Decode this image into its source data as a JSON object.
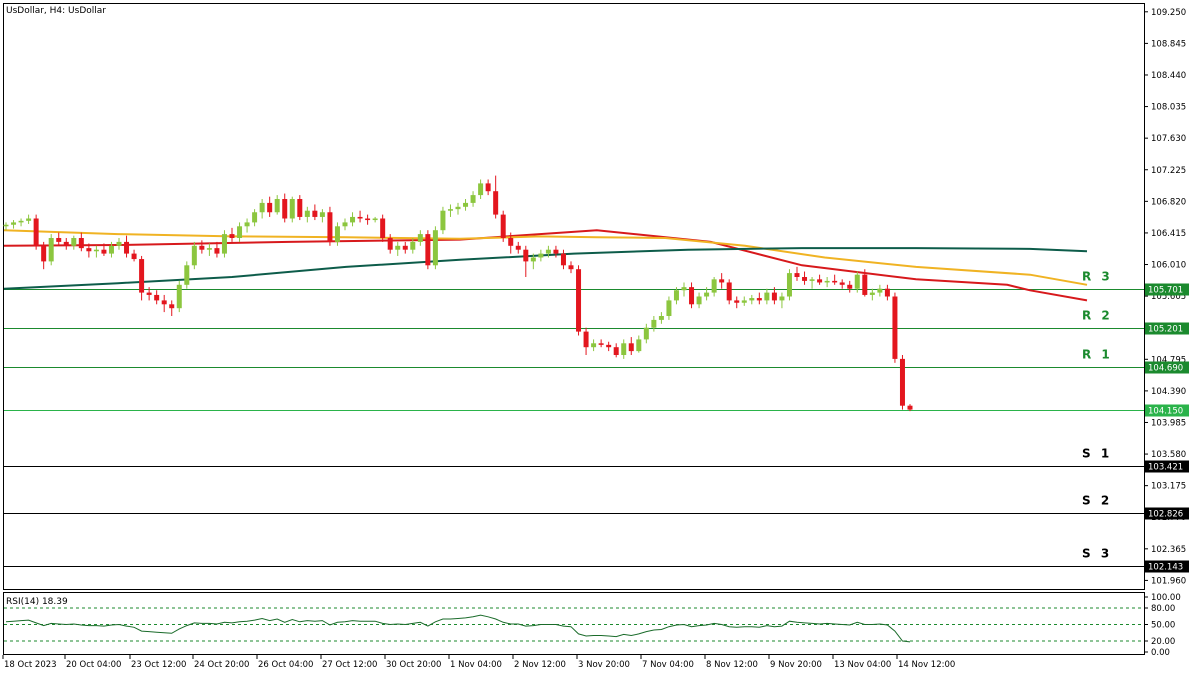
{
  "chart_data": {
    "type": "candlestick",
    "title": "UsDollar, H4:  UsDollar",
    "ylim": [
      101.85,
      109.35
    ],
    "y_ticks": [
      "109.250",
      "108.845",
      "108.440",
      "108.035",
      "107.630",
      "107.225",
      "106.820",
      "106.415",
      "106.010",
      "105.605",
      "105.200",
      "104.795",
      "104.390",
      "103.985",
      "103.580",
      "103.175",
      "102.770",
      "102.365",
      "101.960"
    ],
    "x_ticks": [
      "18 Oct 2023",
      "20 Oct 04:00",
      "23 Oct 12:00",
      "24 Oct 20:00",
      "26 Oct 04:00",
      "27 Oct 12:00",
      "30 Oct 20:00",
      "1 Nov 04:00",
      "2 Nov 12:00",
      "3 Nov 20:00",
      "7 Nov 04:00",
      "8 Nov 12:00",
      "9 Nov 20:00",
      "13 Nov 04:00",
      "14 Nov 12:00"
    ],
    "colors": {
      "up": "#8cc63f",
      "down": "#e3161e",
      "ma_red": "#d7191c",
      "ma_orange": "#f0b323",
      "ma_dark": "#0d5c4a",
      "level_green": "#1b8a2e",
      "level_black": "#000000",
      "rsi": "#1a6b2a",
      "current_price": "#2ab34a"
    },
    "levels": [
      {
        "name": "R 3",
        "value": 105.701,
        "label": "105.701",
        "color": "#1b8a2e"
      },
      {
        "name": "R 2",
        "value": 105.201,
        "label": "105.201",
        "color": "#1b8a2e"
      },
      {
        "name": "R 1",
        "value": 104.69,
        "label": "104.690",
        "color": "#1b8a2e"
      },
      {
        "name": "",
        "value": 104.15,
        "label": "104.150",
        "color": "#2ab34a"
      },
      {
        "name": "S 1",
        "value": 103.421,
        "label": "103.421",
        "color": "#000000"
      },
      {
        "name": "S 2",
        "value": 102.826,
        "label": "102.826",
        "color": "#000000"
      },
      {
        "name": "S 3",
        "value": 102.143,
        "label": "102.143",
        "color": "#000000"
      }
    ],
    "candles": [
      [
        106.5,
        106.55,
        106.45,
        106.52
      ],
      [
        106.52,
        106.58,
        106.47,
        106.55
      ],
      [
        106.55,
        106.6,
        106.5,
        106.57
      ],
      [
        106.57,
        106.65,
        106.53,
        106.6
      ],
      [
        106.6,
        106.65,
        106.2,
        106.25
      ],
      [
        106.25,
        106.3,
        105.95,
        106.05
      ],
      [
        106.05,
        106.4,
        106.0,
        106.35
      ],
      [
        106.35,
        106.42,
        106.25,
        106.3
      ],
      [
        106.3,
        106.35,
        106.2,
        106.25
      ],
      [
        106.25,
        106.38,
        106.2,
        106.35
      ],
      [
        106.35,
        106.42,
        106.18,
        106.22
      ],
      [
        106.22,
        106.28,
        106.1,
        106.18
      ],
      [
        106.18,
        106.25,
        106.1,
        106.2
      ],
      [
        106.2,
        106.28,
        106.12,
        106.15
      ],
      [
        106.15,
        106.3,
        106.1,
        106.25
      ],
      [
        106.25,
        106.35,
        106.2,
        106.3
      ],
      [
        106.3,
        106.38,
        106.1,
        106.15
      ],
      [
        106.15,
        106.2,
        106.05,
        106.08
      ],
      [
        106.08,
        106.12,
        105.55,
        105.65
      ],
      [
        105.65,
        105.72,
        105.55,
        105.62
      ],
      [
        105.62,
        105.68,
        105.5,
        105.55
      ],
      [
        105.55,
        105.62,
        105.4,
        105.5
      ],
      [
        105.5,
        105.55,
        105.35,
        105.45
      ],
      [
        105.45,
        105.8,
        105.4,
        105.75
      ],
      [
        105.75,
        106.05,
        105.7,
        106.0
      ],
      [
        106.0,
        106.3,
        105.95,
        106.25
      ],
      [
        106.25,
        106.32,
        106.15,
        106.2
      ],
      [
        106.2,
        106.28,
        106.12,
        106.22
      ],
      [
        106.22,
        106.3,
        106.1,
        106.15
      ],
      [
        106.15,
        106.45,
        106.1,
        106.4
      ],
      [
        106.4,
        106.48,
        106.3,
        106.35
      ],
      [
        106.35,
        106.55,
        106.3,
        106.5
      ],
      [
        106.5,
        106.6,
        106.42,
        106.55
      ],
      [
        106.55,
        106.72,
        106.5,
        106.68
      ],
      [
        106.68,
        106.85,
        106.6,
        106.8
      ],
      [
        106.8,
        106.88,
        106.62,
        106.68
      ],
      [
        106.68,
        106.9,
        106.65,
        106.85
      ],
      [
        106.85,
        106.92,
        106.55,
        106.6
      ],
      [
        106.6,
        106.88,
        106.55,
        106.85
      ],
      [
        106.85,
        106.9,
        106.58,
        106.62
      ],
      [
        106.62,
        106.75,
        106.55,
        106.7
      ],
      [
        106.7,
        106.78,
        106.58,
        106.62
      ],
      [
        106.62,
        106.72,
        106.55,
        106.68
      ],
      [
        106.68,
        106.75,
        106.25,
        106.3
      ],
      [
        106.3,
        106.55,
        106.25,
        106.5
      ],
      [
        106.5,
        106.6,
        106.45,
        106.55
      ],
      [
        106.55,
        106.68,
        106.5,
        106.62
      ],
      [
        106.62,
        106.7,
        106.55,
        106.6
      ],
      [
        106.6,
        106.65,
        106.52,
        106.58
      ],
      [
        106.58,
        106.62,
        106.55,
        106.6
      ],
      [
        106.6,
        106.65,
        106.3,
        106.35
      ],
      [
        106.35,
        106.4,
        106.15,
        106.2
      ],
      [
        106.2,
        106.3,
        106.12,
        106.25
      ],
      [
        106.25,
        106.3,
        106.15,
        106.2
      ],
      [
        106.2,
        106.35,
        106.15,
        106.3
      ],
      [
        106.3,
        106.45,
        106.25,
        106.4
      ],
      [
        106.4,
        106.45,
        105.95,
        106.0
      ],
      [
        106.0,
        106.5,
        105.95,
        106.45
      ],
      [
        106.45,
        106.75,
        106.4,
        106.7
      ],
      [
        106.7,
        106.78,
        106.62,
        106.72
      ],
      [
        106.72,
        106.8,
        106.65,
        106.75
      ],
      [
        106.75,
        106.85,
        106.7,
        106.8
      ],
      [
        106.8,
        106.95,
        106.75,
        106.9
      ],
      [
        106.9,
        107.1,
        106.85,
        107.05
      ],
      [
        107.05,
        107.1,
        106.9,
        106.95
      ],
      [
        106.95,
        107.15,
        106.6,
        106.65
      ],
      [
        106.65,
        106.7,
        106.3,
        106.35
      ],
      [
        106.35,
        106.42,
        106.15,
        106.25
      ],
      [
        106.25,
        106.3,
        106.15,
        106.2
      ],
      [
        106.2,
        106.25,
        105.85,
        106.05
      ],
      [
        106.05,
        106.15,
        105.95,
        106.1
      ],
      [
        106.1,
        106.2,
        106.05,
        106.15
      ],
      [
        106.15,
        106.25,
        106.1,
        106.2
      ],
      [
        106.2,
        106.25,
        106.1,
        106.15
      ],
      [
        106.15,
        106.2,
        105.95,
        106.0
      ],
      [
        106.0,
        106.05,
        105.9,
        105.95
      ],
      [
        105.95,
        106.0,
        105.1,
        105.15
      ],
      [
        105.15,
        105.2,
        104.85,
        104.95
      ],
      [
        104.95,
        105.05,
        104.9,
        105.0
      ],
      [
        105.0,
        105.05,
        104.95,
        104.98
      ],
      [
        104.98,
        105.02,
        104.9,
        104.95
      ],
      [
        104.95,
        105.0,
        104.82,
        104.85
      ],
      [
        104.85,
        105.05,
        104.8,
        105.0
      ],
      [
        105.0,
        105.08,
        104.85,
        104.9
      ],
      [
        104.9,
        105.1,
        104.88,
        105.05
      ],
      [
        105.05,
        105.25,
        105.0,
        105.2
      ],
      [
        105.2,
        105.35,
        105.15,
        105.3
      ],
      [
        105.3,
        105.4,
        105.25,
        105.35
      ],
      [
        105.35,
        105.6,
        105.3,
        105.55
      ],
      [
        105.55,
        105.72,
        105.5,
        105.68
      ],
      [
        105.68,
        105.78,
        105.6,
        105.72
      ],
      [
        105.72,
        105.78,
        105.45,
        105.5
      ],
      [
        105.5,
        105.65,
        105.45,
        105.6
      ],
      [
        105.6,
        105.72,
        105.55,
        105.65
      ],
      [
        105.65,
        105.85,
        105.6,
        105.82
      ],
      [
        105.82,
        105.9,
        105.7,
        105.78
      ],
      [
        105.78,
        105.82,
        105.5,
        105.55
      ],
      [
        105.55,
        105.6,
        105.45,
        105.52
      ],
      [
        105.52,
        105.6,
        105.48,
        105.55
      ],
      [
        105.55,
        105.62,
        105.5,
        105.58
      ],
      [
        105.58,
        105.65,
        105.5,
        105.55
      ],
      [
        105.55,
        105.7,
        105.5,
        105.65
      ],
      [
        105.65,
        105.72,
        105.5,
        105.55
      ],
      [
        105.55,
        105.65,
        105.45,
        105.6
      ],
      [
        105.6,
        105.95,
        105.55,
        105.9
      ],
      [
        105.9,
        105.98,
        105.8,
        105.85
      ],
      [
        105.85,
        105.92,
        105.75,
        105.8
      ],
      [
        105.8,
        105.85,
        105.7,
        105.82
      ],
      [
        105.82,
        105.88,
        105.75,
        105.78
      ],
      [
        105.78,
        105.85,
        105.72,
        105.8
      ],
      [
        105.8,
        105.88,
        105.75,
        105.78
      ],
      [
        105.78,
        105.82,
        105.7,
        105.75
      ],
      [
        105.75,
        105.8,
        105.65,
        105.7
      ],
      [
        105.7,
        105.92,
        105.65,
        105.88
      ],
      [
        105.88,
        105.95,
        105.6,
        105.62
      ],
      [
        105.62,
        105.7,
        105.55,
        105.65
      ],
      [
        105.65,
        105.75,
        105.6,
        105.7
      ],
      [
        105.7,
        105.75,
        105.55,
        105.6
      ],
      [
        105.6,
        105.65,
        104.75,
        104.8
      ],
      [
        104.8,
        104.85,
        104.15,
        104.2
      ],
      [
        104.2,
        104.22,
        104.13,
        104.15
      ]
    ],
    "moving_averages": [
      {
        "color": "#d7191c",
        "values": [
          [
            0,
            106.25
          ],
          [
            0.1,
            106.26
          ],
          [
            0.25,
            106.3
          ],
          [
            0.4,
            106.33
          ],
          [
            0.47,
            106.4
          ],
          [
            0.52,
            106.45
          ],
          [
            0.62,
            106.3
          ],
          [
            0.7,
            106.0
          ],
          [
            0.8,
            105.82
          ],
          [
            0.88,
            105.75
          ],
          [
            0.9,
            105.68
          ],
          [
            0.95,
            105.55
          ]
        ]
      },
      {
        "color": "#f0b323",
        "values": [
          [
            0,
            106.45
          ],
          [
            0.1,
            106.4
          ],
          [
            0.2,
            106.37
          ],
          [
            0.3,
            106.36
          ],
          [
            0.4,
            106.34
          ],
          [
            0.47,
            106.37
          ],
          [
            0.52,
            106.36
          ],
          [
            0.58,
            106.35
          ],
          [
            0.65,
            106.25
          ],
          [
            0.72,
            106.1
          ],
          [
            0.8,
            105.98
          ],
          [
            0.9,
            105.88
          ],
          [
            0.95,
            105.75
          ]
        ]
      },
      {
        "color": "#0d5c4a",
        "values": [
          [
            0,
            105.7
          ],
          [
            0.1,
            105.77
          ],
          [
            0.2,
            105.85
          ],
          [
            0.3,
            105.98
          ],
          [
            0.4,
            106.07
          ],
          [
            0.5,
            106.15
          ],
          [
            0.6,
            106.2
          ],
          [
            0.7,
            106.22
          ],
          [
            0.8,
            106.22
          ],
          [
            0.9,
            106.21
          ],
          [
            0.95,
            106.18
          ]
        ]
      }
    ],
    "rsi": {
      "label": "RSI(14) 18.39",
      "ylim": [
        0,
        100
      ],
      "levels": [
        80,
        50,
        20
      ],
      "ticks": [
        "100.00",
        "80.00",
        "50.00",
        "20.00",
        "0.00"
      ],
      "values": [
        55,
        56,
        57,
        58,
        53,
        48,
        52,
        51,
        50,
        51,
        49,
        48,
        48,
        47,
        49,
        50,
        47,
        45,
        38,
        37,
        36,
        35,
        34,
        42,
        48,
        53,
        52,
        52,
        51,
        54,
        53,
        55,
        56,
        58,
        61,
        57,
        60,
        54,
        59,
        55,
        57,
        56,
        57,
        49,
        54,
        55,
        57,
        56,
        56,
        56,
        52,
        50,
        51,
        50,
        52,
        54,
        47,
        55,
        60,
        60,
        61,
        62,
        64,
        67,
        64,
        60,
        54,
        51,
        51,
        47,
        48,
        50,
        50,
        50,
        47,
        46,
        33,
        29,
        30,
        30,
        29,
        28,
        32,
        30,
        33,
        37,
        40,
        41,
        46,
        49,
        50,
        46,
        48,
        49,
        52,
        50,
        46,
        45,
        46,
        46,
        45,
        48,
        46,
        47,
        56,
        54,
        53,
        52,
        51,
        52,
        51,
        50,
        49,
        54,
        50,
        50,
        51,
        49,
        38,
        20,
        18.39
      ]
    }
  }
}
